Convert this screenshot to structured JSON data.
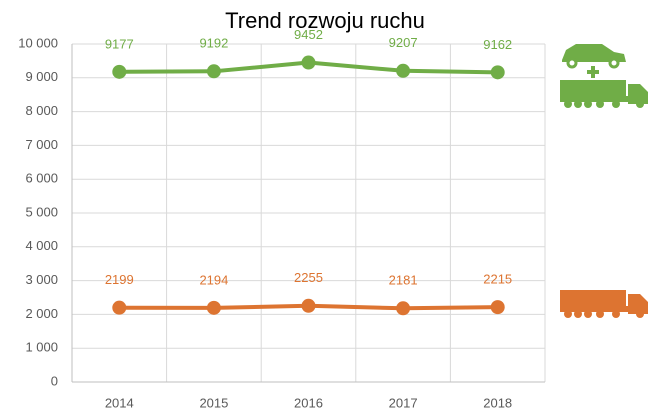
{
  "chart_data": {
    "type": "line",
    "title": "Trend rozwoju ruchu",
    "categories": [
      "2014",
      "2015",
      "2016",
      "2017",
      "2018"
    ],
    "series": [
      {
        "color": "#70ad47",
        "values": [
          9177,
          9192,
          9452,
          9207,
          9162
        ]
      },
      {
        "color": "#dd7431",
        "values": [
          2199,
          2194,
          2255,
          2181,
          2215
        ]
      }
    ],
    "ylim": [
      0,
      10000
    ],
    "yticks": [
      0,
      {
        "value": 1000,
        "label": "1 000"
      },
      {
        "value": 2000,
        "label": "2 000"
      },
      {
        "value": 3000,
        "label": "3 000"
      },
      {
        "value": 4000,
        "label": "4 000"
      },
      {
        "value": 5000,
        "label": "5 000"
      },
      {
        "value": 6000,
        "label": "6 000"
      },
      {
        "value": 7000,
        "label": "7 000"
      },
      {
        "value": 8000,
        "label": "8 000"
      },
      {
        "value": 9000,
        "label": "9 000"
      },
      {
        "value": 10000,
        "label": "10 000"
      }
    ],
    "grid": true
  }
}
